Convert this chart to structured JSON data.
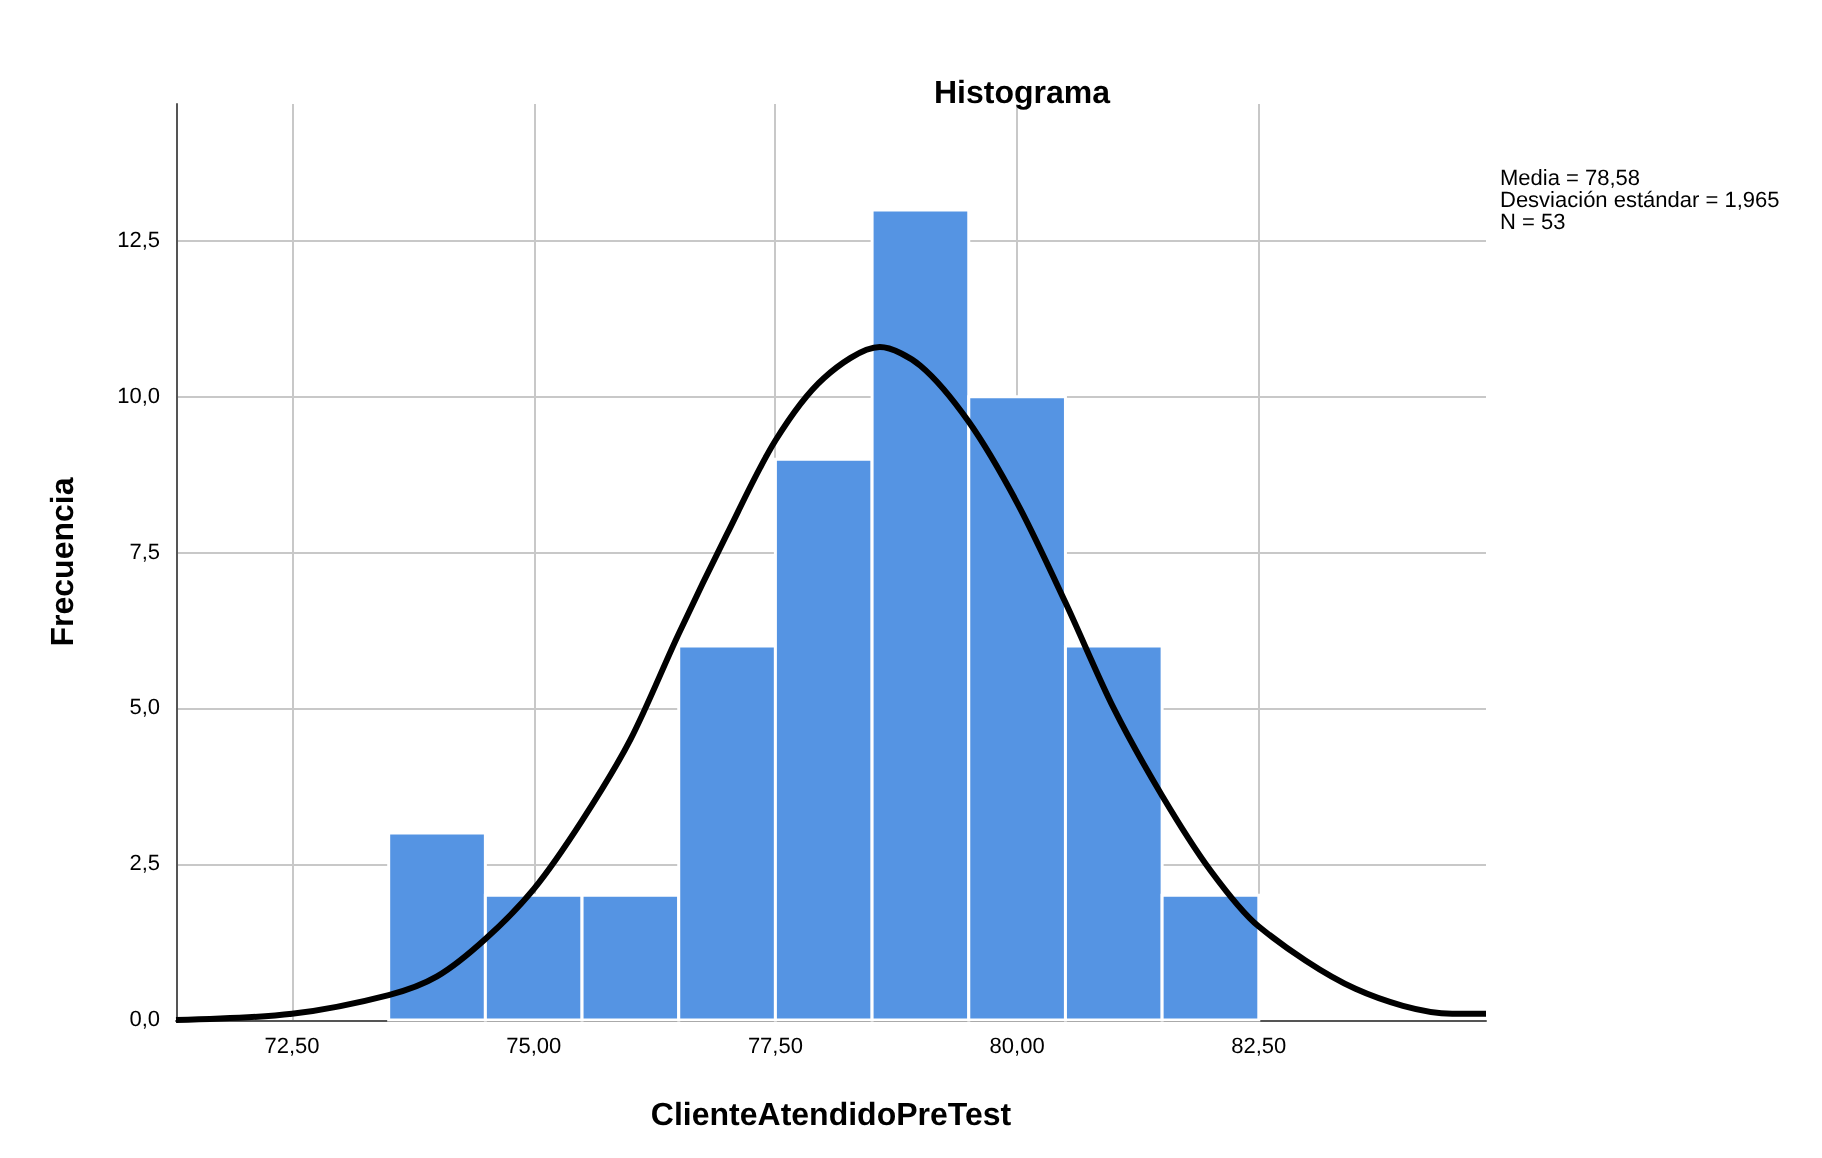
{
  "chart_data": {
    "type": "histogram",
    "title": "Histograma",
    "xlabel": "ClienteAtendidoPreTest",
    "ylabel": "Frecuencia",
    "bins": [
      73.5,
      74.5,
      75.5,
      76.5,
      77.5,
      78.5,
      79.5,
      80.5,
      81.5,
      82.5
    ],
    "values": [
      3,
      2,
      2,
      6,
      9,
      13,
      10,
      6,
      2
    ],
    "color": "#5594e3",
    "series": [
      {
        "type": "line",
        "color": "#000000",
        "x": [
          71.3,
          72.5,
          73.5,
          74.0,
          74.5,
          75.0,
          75.5,
          76.0,
          76.5,
          77.0,
          77.5,
          78.0,
          78.58,
          79.0,
          79.5,
          80.0,
          80.5,
          81.0,
          81.5,
          82.0,
          82.5,
          83.5,
          84.5,
          84.85
        ],
        "values": [
          0.0,
          0.1,
          0.4,
          0.7,
          1.3,
          2.1,
          3.2,
          4.5,
          6.2,
          7.8,
          9.3,
          10.3,
          10.8,
          10.5,
          9.6,
          8.3,
          6.7,
          5.0,
          3.6,
          2.4,
          1.5,
          0.5,
          0.1,
          0.1
        ]
      }
    ],
    "xlim": [
      71.3,
      84.85
    ],
    "ylim": [
      0,
      14.7
    ],
    "xticks": [
      {
        "value": 72.5,
        "label": "72,50"
      },
      {
        "value": 75,
        "label": "75,00"
      },
      {
        "value": 77.5,
        "label": "77,50"
      },
      {
        "value": 80,
        "label": "80,00"
      },
      {
        "value": 82.5,
        "label": "82,50"
      }
    ],
    "yticks": [
      {
        "value": 0,
        "label": "0,0"
      },
      {
        "value": 2.5,
        "label": "2,5"
      },
      {
        "value": 5,
        "label": "5,0"
      },
      {
        "value": 7.5,
        "label": "7,5"
      },
      {
        "value": 10,
        "label": "10,0"
      },
      {
        "value": 12.5,
        "label": "12,5"
      }
    ],
    "grid": true,
    "annotations": [
      "Media = 78,58",
      "Desviación estándar = 1,965",
      "N = 53"
    ]
  }
}
